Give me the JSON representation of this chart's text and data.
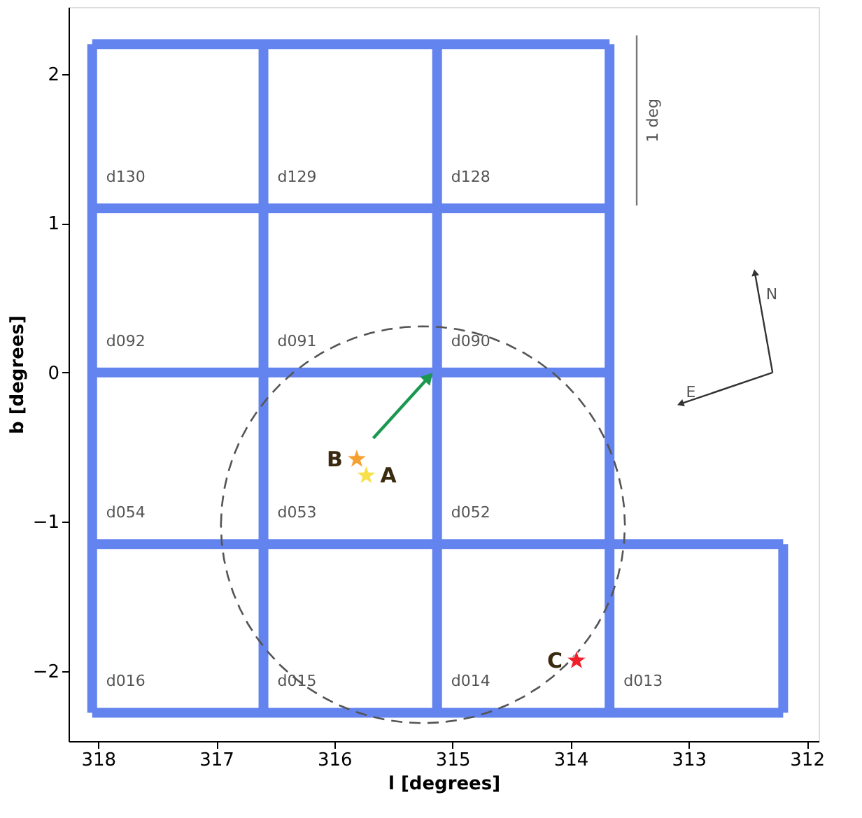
{
  "chart_data": {
    "type": "line",
    "xlabel": "l [degrees]",
    "ylabel": "b [degrees]",
    "xlim": [
      318.25,
      311.9
    ],
    "ylim": [
      -2.47,
      2.45
    ],
    "xticks": [
      318,
      317,
      316,
      315,
      314,
      313,
      312
    ],
    "yticks": [
      -2,
      -1,
      0,
      1,
      2
    ],
    "grid": false,
    "legend": false,
    "series": [
      {
        "color": "#6383ee",
        "line_style": "solid",
        "x": [
          318.05,
          313.67
        ],
        "values": [
          2.2,
          2.2
        ]
      },
      {
        "color": "#6383ee",
        "line_style": "solid",
        "x": [
          318.05,
          313.67
        ],
        "values": [
          1.1,
          1.1
        ]
      },
      {
        "color": "#6383ee",
        "line_style": "solid",
        "x": [
          318.05,
          313.67
        ],
        "values": [
          0,
          0
        ]
      },
      {
        "color": "#6383ee",
        "line_style": "solid",
        "x": [
          318.05,
          312.2
        ],
        "values": [
          -1.15,
          -1.15
        ]
      },
      {
        "color": "#6383ee",
        "line_style": "solid",
        "x": [
          318.05,
          312.2
        ],
        "values": [
          -2.28,
          -2.28
        ]
      },
      {
        "color": "#6383ee",
        "line_style": "solid",
        "x": [
          318.05,
          318.05
        ],
        "values": [
          2.2,
          -2.28
        ]
      },
      {
        "color": "#6383ee",
        "line_style": "solid",
        "x": [
          316.6,
          316.6
        ],
        "values": [
          2.2,
          -2.28
        ]
      },
      {
        "color": "#6383ee",
        "line_style": "solid",
        "x": [
          315.13,
          315.13
        ],
        "values": [
          2.2,
          -2.28
        ]
      },
      {
        "color": "#6383ee",
        "line_style": "solid",
        "x": [
          313.67,
          313.67
        ],
        "values": [
          2.2,
          -2.28
        ]
      },
      {
        "color": "#6383ee",
        "line_style": "solid",
        "x": [
          312.2,
          312.2
        ],
        "values": [
          -1.15,
          -2.28
        ]
      },
      {
        "color": "#1a9850",
        "line_style": "solid",
        "marker": "triangle",
        "x": [
          315.67,
          315.2
        ],
        "values": [
          -0.44,
          -0.03
        ]
      },
      {
        "color": "#777777",
        "line_style": "solid",
        "x": [
          313.44,
          313.44
        ],
        "values": [
          2.26,
          1.12
        ]
      },
      {
        "color": "#333333",
        "line_style": "solid",
        "marker": "triangle",
        "x": [
          312.29,
          312.44
        ],
        "values": [
          0,
          0.67
        ]
      },
      {
        "color": "#333333",
        "line_style": "solid",
        "marker": "triangle",
        "x": [
          312.29,
          313.07
        ],
        "values": [
          0,
          -0.21
        ]
      },
      {
        "type": "scatter",
        "name": "B",
        "color": "#f5a030",
        "marker": "star",
        "x": [
          315.81
        ],
        "values": [
          -0.58
        ]
      },
      {
        "type": "scatter",
        "name": "A",
        "color": "#f8e04a",
        "marker": "star",
        "x": [
          315.73
        ],
        "values": [
          -0.69
        ]
      },
      {
        "type": "scatter",
        "name": "C",
        "color": "#f0202a",
        "marker": "star",
        "x": [
          313.95
        ],
        "values": [
          -1.93
        ]
      }
    ],
    "annotations": [
      "d130",
      "d129",
      "d128",
      "d092",
      "d091",
      "d090",
      "d054",
      "d053",
      "d052",
      "d016",
      "d015",
      "d014",
      "d013",
      "1 deg",
      "N",
      "E"
    ]
  }
}
